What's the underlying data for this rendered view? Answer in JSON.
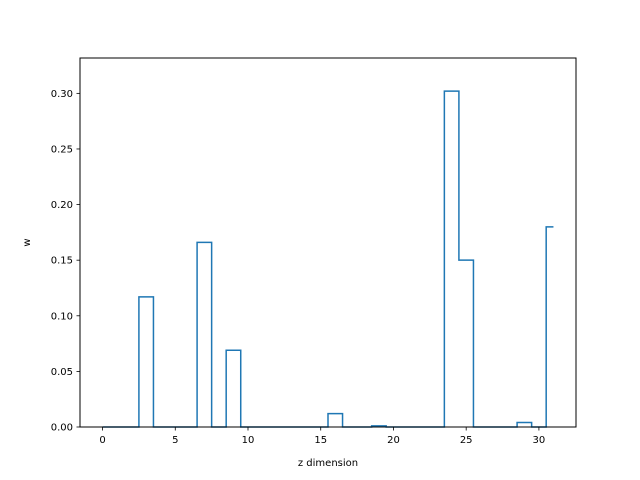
{
  "chart_data": {
    "type": "line",
    "drawstyle": "steps-mid",
    "title": "",
    "xlabel": "z dimension",
    "ylabel": "w",
    "xlim": [
      -1.55,
      32.55
    ],
    "ylim": [
      0,
      0.3318
    ],
    "x_ticks": [
      0,
      5,
      10,
      15,
      20,
      25,
      30
    ],
    "y_ticks": [
      0.0,
      0.05,
      0.1,
      0.15,
      0.2,
      0.25,
      0.3
    ],
    "grid": false,
    "legend": "none",
    "series": [
      {
        "color": "#1f77b4",
        "x": [
          0,
          1,
          2,
          3,
          4,
          5,
          6,
          7,
          8,
          9,
          10,
          11,
          12,
          13,
          14,
          15,
          16,
          17,
          18,
          19,
          20,
          21,
          22,
          23,
          24,
          25,
          26,
          27,
          28,
          29,
          30,
          31
        ],
        "values": [
          0,
          0,
          0,
          0.117,
          0,
          0,
          0,
          0.166,
          0,
          0.069,
          0,
          0,
          0,
          0,
          0,
          0,
          0.012,
          0,
          0,
          0.001,
          0,
          0,
          0,
          0,
          0.302,
          0.15,
          0,
          0,
          0,
          0.004,
          0,
          0.18
        ]
      }
    ]
  }
}
